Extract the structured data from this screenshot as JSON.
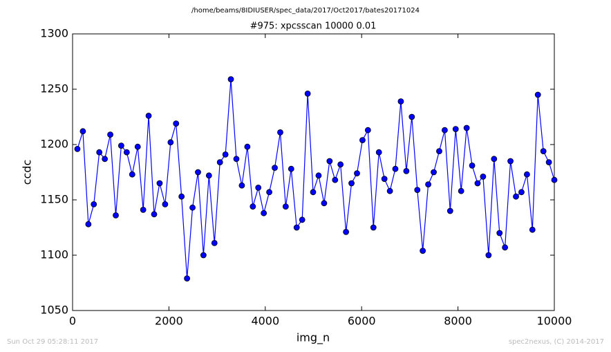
{
  "chart_data": {
    "type": "line",
    "suptitle": "/home/beams/8IDIUSER/spec_data/2017/Oct2017/bates20171024",
    "title": "#975: xpcsscan 10000 0.01",
    "xlabel": "img_n",
    "ylabel": "ccdc",
    "footer_left": "Sun Oct 29 05:28:11 2017",
    "footer_right": "spec2nexus, (C) 2014-2017",
    "xlim": [
      0,
      10000
    ],
    "xticks": [
      0,
      2000,
      4000,
      6000,
      8000,
      10000
    ],
    "ylim": [
      1050,
      1300
    ],
    "yticks": [
      1050,
      1100,
      1150,
      1200,
      1250,
      1300
    ],
    "grid": false,
    "series": [
      {
        "name": "ccdc",
        "color": "#0000ff",
        "x": [
          100,
          214,
          328,
          441,
          555,
          669,
          783,
          897,
          1010,
          1124,
          1238,
          1352,
          1466,
          1579,
          1693,
          1807,
          1921,
          2035,
          2148,
          2262,
          2376,
          2490,
          2604,
          2717,
          2831,
          2945,
          3059,
          3173,
          3286,
          3400,
          3514,
          3628,
          3742,
          3855,
          3969,
          4083,
          4197,
          4311,
          4424,
          4538,
          4652,
          4766,
          4880,
          4993,
          5107,
          5221,
          5335,
          5449,
          5562,
          5676,
          5790,
          5904,
          6018,
          6131,
          6245,
          6359,
          6473,
          6587,
          6700,
          6814,
          6928,
          7042,
          7156,
          7269,
          7383,
          7497,
          7611,
          7725,
          7838,
          7952,
          8066,
          8180,
          8294,
          8407,
          8521,
          8635,
          8749,
          8863,
          8976,
          9090,
          9204,
          9318,
          9432,
          9545,
          9659,
          9773,
          9887,
          10000
        ],
        "values": [
          1196,
          1212,
          1128,
          1146,
          1193,
          1187,
          1209,
          1136,
          1199,
          1193,
          1173,
          1198,
          1141,
          1226,
          1137,
          1165,
          1146,
          1202,
          1219,
          1153,
          1079,
          1143,
          1175,
          1100,
          1172,
          1111,
          1184,
          1191,
          1259,
          1187,
          1163,
          1198,
          1144,
          1161,
          1138,
          1157,
          1179,
          1211,
          1144,
          1178,
          1125,
          1132,
          1246,
          1157,
          1172,
          1147,
          1185,
          1168,
          1182,
          1121,
          1165,
          1174,
          1204,
          1213,
          1125,
          1193,
          1169,
          1158,
          1178,
          1239,
          1176,
          1225,
          1159,
          1104,
          1164,
          1175,
          1194,
          1213,
          1140,
          1214,
          1158,
          1215,
          1181,
          1165,
          1171,
          1100,
          1187,
          1120,
          1107,
          1185,
          1153,
          1157,
          1173,
          1123,
          1245,
          1194,
          1184,
          1168
        ]
      }
    ]
  }
}
